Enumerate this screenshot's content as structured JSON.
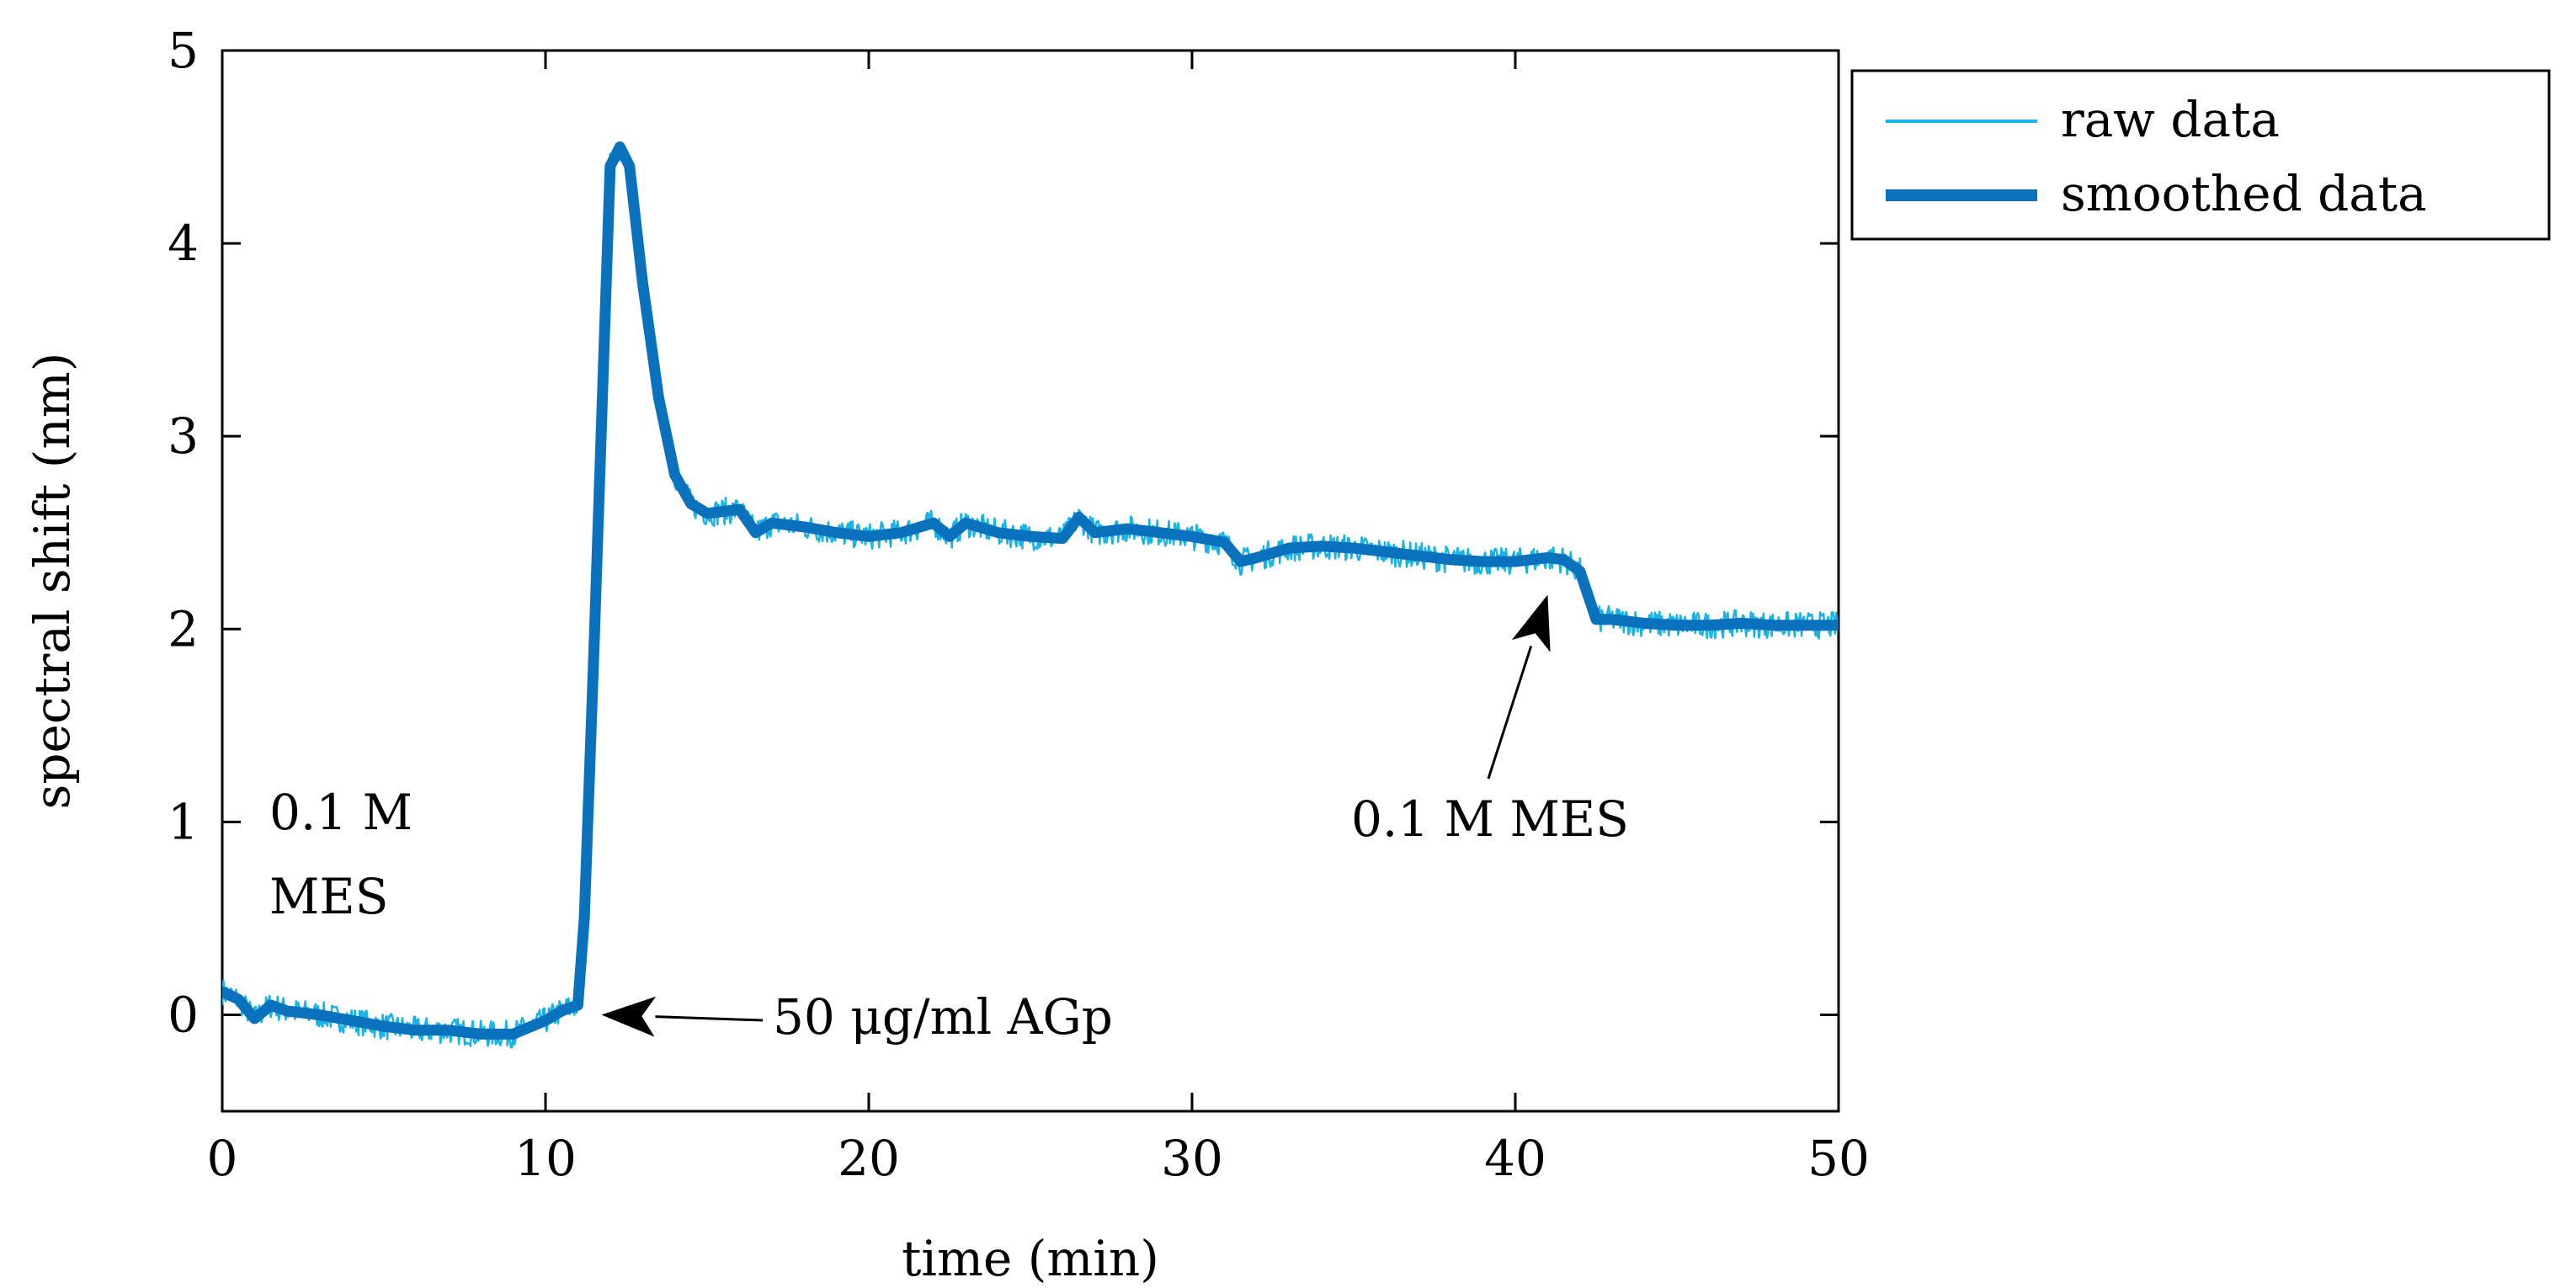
{
  "chart_data": {
    "type": "line",
    "title": "",
    "xlabel": "time (min)",
    "ylabel": "spectral shift (nm)",
    "xlim": [
      0,
      50
    ],
    "ylim": [
      -0.5,
      5
    ],
    "xticks": [
      0,
      10,
      20,
      30,
      40,
      50
    ],
    "yticks": [
      0,
      1,
      2,
      3,
      4,
      5
    ],
    "grid": false,
    "legend_position": "outside-top-right",
    "legend": [
      "raw data",
      "smoothed data"
    ],
    "annotations": {
      "start_line1": "0.1 M",
      "start_line2": "MES",
      "injection": "50 μg/ml AGp",
      "rinse": "0.1 M MES"
    },
    "annotation_targets": {
      "injection": {
        "x": 11.0,
        "y": 0.0
      },
      "rinse": {
        "x": 41.0,
        "y": 2.3
      }
    },
    "series": [
      {
        "name": "raw data",
        "color": "#1ab3e6",
        "noise_amplitude": 0.07,
        "x": [
          0,
          0.5,
          1,
          1.5,
          2,
          3,
          4,
          5,
          6,
          7,
          8,
          9,
          10,
          10.5,
          11,
          11.2,
          11.5,
          11.8,
          12,
          12.3,
          12.6,
          13,
          13.5,
          14,
          14.5,
          15,
          16,
          16.5,
          17,
          18,
          19,
          20,
          21,
          22,
          22.5,
          23,
          24,
          25,
          26,
          26.5,
          27,
          28,
          29,
          30,
          31,
          31.5,
          32,
          33,
          34,
          35,
          36,
          37,
          38,
          39,
          40,
          41,
          41.5,
          42,
          42.5,
          43,
          44,
          45,
          46,
          47,
          48,
          49,
          50
        ],
        "y": [
          0.12,
          0.08,
          -0.02,
          0.05,
          0.02,
          0.0,
          -0.03,
          -0.06,
          -0.08,
          -0.08,
          -0.1,
          -0.1,
          -0.03,
          0.02,
          0.05,
          0.5,
          1.9,
          3.4,
          4.4,
          4.5,
          4.4,
          3.8,
          3.2,
          2.8,
          2.65,
          2.6,
          2.62,
          2.5,
          2.55,
          2.53,
          2.5,
          2.48,
          2.5,
          2.55,
          2.48,
          2.55,
          2.5,
          2.48,
          2.47,
          2.58,
          2.5,
          2.52,
          2.5,
          2.48,
          2.45,
          2.35,
          2.37,
          2.42,
          2.43,
          2.42,
          2.4,
          2.38,
          2.36,
          2.35,
          2.35,
          2.37,
          2.36,
          2.3,
          2.05,
          2.05,
          2.03,
          2.02,
          2.02,
          2.03,
          2.02,
          2.02,
          2.02
        ]
      },
      {
        "name": "smoothed data",
        "color": "#0a72bd",
        "x": [
          0,
          0.5,
          1,
          1.5,
          2,
          3,
          4,
          5,
          6,
          7,
          8,
          9,
          10,
          10.5,
          11,
          11.2,
          11.5,
          11.8,
          12,
          12.3,
          12.6,
          13,
          13.5,
          14,
          14.5,
          15,
          16,
          16.5,
          17,
          18,
          19,
          20,
          21,
          22,
          22.5,
          23,
          24,
          25,
          26,
          26.5,
          27,
          28,
          29,
          30,
          31,
          31.5,
          32,
          33,
          34,
          35,
          36,
          37,
          38,
          39,
          40,
          41,
          41.5,
          42,
          42.5,
          43,
          44,
          45,
          46,
          47,
          48,
          49,
          50
        ],
        "y": [
          0.12,
          0.08,
          -0.02,
          0.05,
          0.02,
          0.0,
          -0.03,
          -0.06,
          -0.08,
          -0.08,
          -0.1,
          -0.1,
          -0.03,
          0.02,
          0.05,
          0.5,
          1.9,
          3.4,
          4.4,
          4.5,
          4.4,
          3.8,
          3.2,
          2.8,
          2.65,
          2.6,
          2.62,
          2.5,
          2.55,
          2.53,
          2.5,
          2.48,
          2.5,
          2.55,
          2.48,
          2.55,
          2.5,
          2.48,
          2.47,
          2.58,
          2.5,
          2.52,
          2.5,
          2.48,
          2.45,
          2.35,
          2.37,
          2.42,
          2.43,
          2.42,
          2.4,
          2.38,
          2.36,
          2.35,
          2.35,
          2.37,
          2.36,
          2.3,
          2.05,
          2.05,
          2.03,
          2.02,
          2.02,
          2.03,
          2.02,
          2.02,
          2.02
        ]
      }
    ]
  }
}
